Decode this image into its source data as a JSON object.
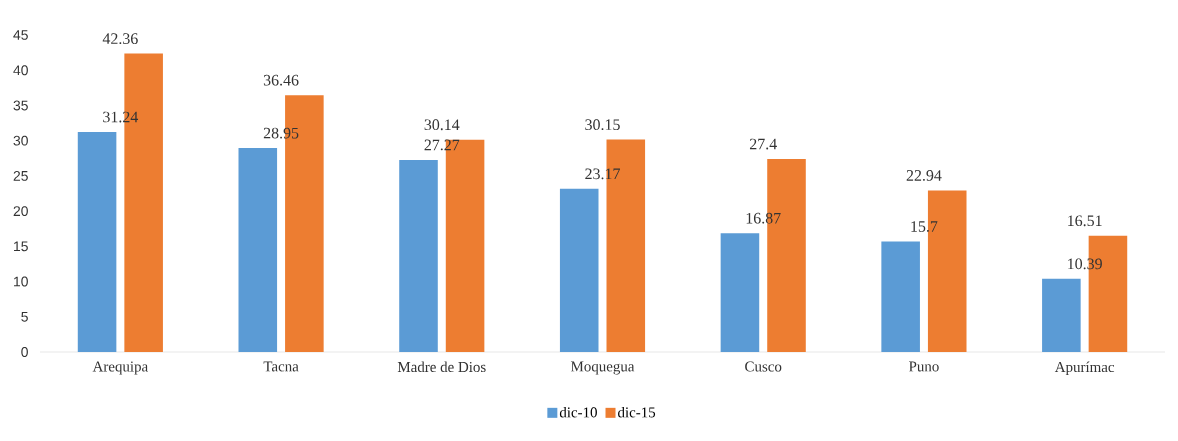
{
  "chart_data": {
    "type": "bar",
    "categories": [
      "Arequipa",
      "Tacna",
      "Madre de Dios",
      "Moquegua",
      "Cusco",
      "Puno",
      "Apurímac"
    ],
    "series": [
      {
        "name": "dic-10",
        "color": "#5b9bd5",
        "values": [
          31.24,
          28.95,
          27.27,
          23.17,
          16.87,
          15.7,
          10.39
        ]
      },
      {
        "name": "dic-15",
        "color": "#ed7d31",
        "values": [
          42.36,
          36.46,
          30.14,
          30.15,
          27.4,
          22.94,
          16.51
        ]
      }
    ],
    "ylim": [
      0,
      45
    ],
    "yticks": [
      0,
      5,
      10,
      15,
      20,
      25,
      30,
      35,
      40,
      45
    ],
    "data_labels": true,
    "legend": "bottom"
  }
}
